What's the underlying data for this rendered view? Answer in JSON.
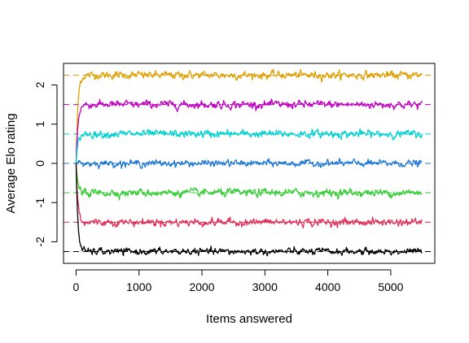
{
  "chart_data": {
    "type": "line",
    "title": "",
    "xlabel": "Items answered",
    "ylabel": "Average Elo rating",
    "xlim": [
      -200,
      5700
    ],
    "ylim": [
      -2.55,
      2.55
    ],
    "x_ticks": [
      0,
      1000,
      2000,
      3000,
      4000,
      5000
    ],
    "y_ticks": [
      -2,
      -1,
      0,
      1,
      2
    ],
    "x_max": 5500,
    "grid": false,
    "legend": "none",
    "series": [
      {
        "color": "#DF9F00",
        "target": 2.25,
        "start": 0,
        "noise": 0.04
      },
      {
        "color": "#C000C0",
        "target": 1.5,
        "start": 0,
        "noise": 0.04
      },
      {
        "color": "#00D0D0",
        "target": 0.75,
        "start": 0,
        "noise": 0.04
      },
      {
        "color": "#1E78D2",
        "target": 0.0,
        "start": 0,
        "noise": 0.035
      },
      {
        "color": "#33CC33",
        "target": -0.75,
        "start": 0,
        "noise": 0.04
      },
      {
        "color": "#E0305A",
        "target": -1.5,
        "start": 0,
        "noise": 0.04
      },
      {
        "color": "#000000",
        "target": -2.25,
        "start": 0,
        "noise": 0.035
      }
    ]
  }
}
